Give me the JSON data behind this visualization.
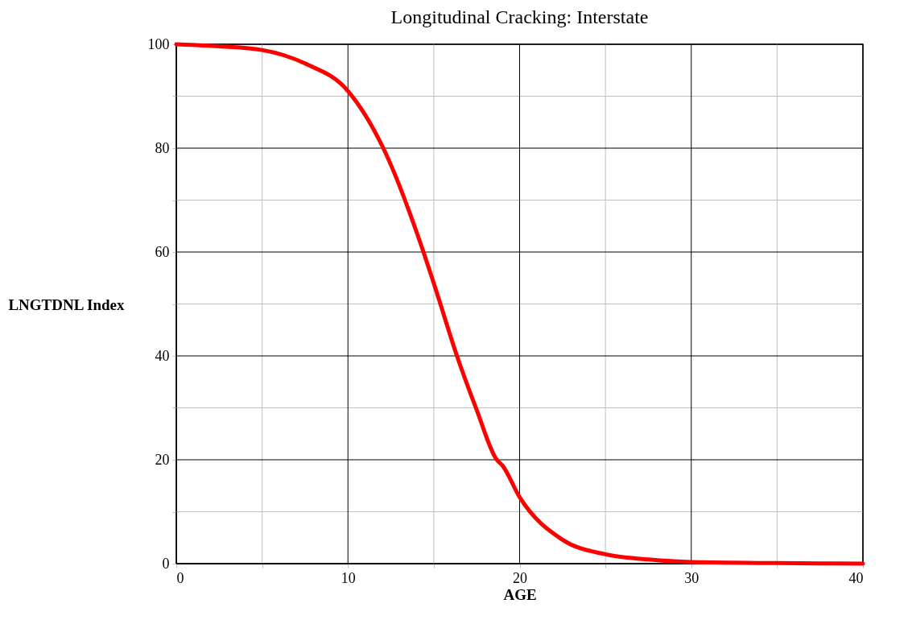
{
  "chart_data": {
    "type": "line",
    "title": "Longitudinal Cracking: Interstate",
    "xlabel": "AGE",
    "ylabel": "LNGTDNL Index",
    "series": [
      {
        "color": "#ff0000",
        "x": [
          0,
          2.5,
          5,
          7.5,
          10,
          12.06,
          14.4,
          15,
          16.35,
          17.5,
          18.67,
          19,
          20,
          22.5,
          25,
          27.5,
          30,
          35,
          40
        ],
        "values": [
          100,
          99.6,
          98.9,
          96.3,
          91,
          80,
          60,
          54,
          40,
          29.6,
          20,
          18.9,
          12.8,
          4.6,
          1.8,
          0.8,
          0.3,
          0.1,
          0
        ]
      }
    ],
    "xlim": [
      0,
      40
    ],
    "ylim": [
      0,
      100
    ],
    "xticks": [
      0,
      {
        "value": 5,
        "label": null
      },
      10,
      {
        "value": 15,
        "label": null
      },
      20,
      {
        "value": 25,
        "label": null
      },
      30,
      {
        "value": 35,
        "label": null
      },
      40
    ],
    "yticks": [
      0,
      {
        "value": 10,
        "label": null
      },
      20,
      {
        "value": 30,
        "label": null
      },
      40,
      {
        "value": 50,
        "label": null
      },
      60,
      {
        "value": 70,
        "label": null
      },
      80,
      {
        "value": 90,
        "label": null
      },
      100
    ],
    "grid": true,
    "marker": "none",
    "line_style": "solid"
  }
}
